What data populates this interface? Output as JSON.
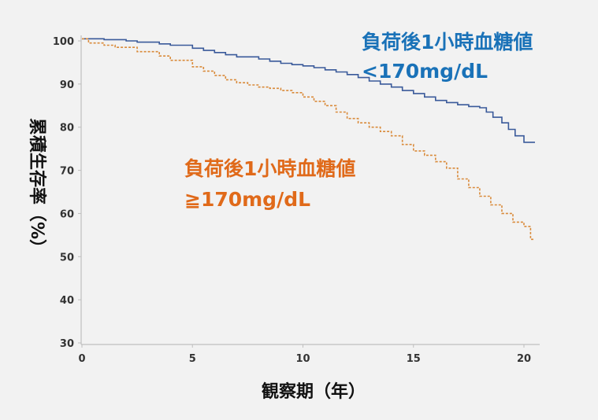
{
  "chart_data": {
    "type": "line",
    "title": "",
    "xlabel": "観察期（年）",
    "ylabel": "累積生存率（%）",
    "xlim": [
      0,
      21
    ],
    "ylim": [
      30,
      101
    ],
    "x_ticks": [
      "0",
      "5",
      "10",
      "15",
      "20"
    ],
    "y_ticks": [
      "30",
      "40",
      "50",
      "60",
      "70",
      "80",
      "90",
      "100"
    ],
    "grid": false,
    "colors": {
      "blue": "#3a5a9a",
      "orange": "#d98a3a",
      "blue_text": "#1a72b8",
      "orange_text": "#e06a1a"
    },
    "series": [
      {
        "name": "負荷後1小時血糖値<170mg/dL",
        "label_line1": "負荷後1小時血糖値",
        "label_line2": "<170mg/dL",
        "style": "solid",
        "x": [
          0,
          1,
          2,
          2.5,
          3.5,
          4,
          5,
          5.5,
          6,
          6.5,
          7,
          8,
          8.5,
          9,
          9.5,
          10,
          10.5,
          11,
          11.5,
          12,
          12.5,
          13,
          13.5,
          14,
          14.5,
          15,
          15.5,
          16,
          16.5,
          17,
          17.5,
          18,
          18.3,
          18.6,
          19,
          19.3,
          19.6,
          20,
          20.5
        ],
        "y": [
          100.5,
          100.3,
          100.0,
          99.7,
          99.3,
          99.0,
          98.3,
          97.8,
          97.3,
          96.8,
          96.3,
          95.8,
          95.3,
          94.8,
          94.5,
          94.2,
          93.8,
          93.3,
          92.8,
          92.2,
          91.5,
          90.7,
          90.0,
          89.3,
          88.5,
          87.8,
          87.0,
          86.2,
          85.7,
          85.2,
          84.8,
          84.5,
          83.5,
          82.3,
          81.0,
          79.5,
          78.0,
          76.5,
          76.5
        ]
      },
      {
        "name": "負荷後1小時血糖値≧170mg/dL",
        "label_line1": "負荷後1小時血糖値",
        "label_line2": "≧170mg/dL",
        "style": "dashed",
        "x": [
          0,
          0.3,
          1,
          1.5,
          2.5,
          3.5,
          4,
          5,
          5.5,
          6,
          6.5,
          7,
          7.5,
          8,
          8.5,
          9,
          9.5,
          10,
          10.5,
          11,
          11.5,
          12,
          12.5,
          13,
          13.5,
          14,
          14.5,
          15,
          15.5,
          16,
          16.5,
          17,
          17.5,
          18,
          18.5,
          19,
          19.5,
          20,
          20.3,
          20.5
        ],
        "y": [
          100.5,
          99.5,
          99.0,
          98.5,
          97.5,
          96.5,
          95.5,
          94.0,
          93.0,
          92.0,
          91.0,
          90.3,
          89.8,
          89.3,
          89.0,
          88.5,
          88.0,
          87.0,
          86.0,
          85.0,
          83.5,
          82.0,
          81.0,
          80.0,
          79.0,
          78.0,
          76.0,
          74.5,
          73.5,
          72.0,
          70.5,
          68.0,
          66.0,
          64.0,
          62.0,
          60.0,
          58.0,
          57.0,
          54.0,
          54.0
        ]
      }
    ]
  }
}
